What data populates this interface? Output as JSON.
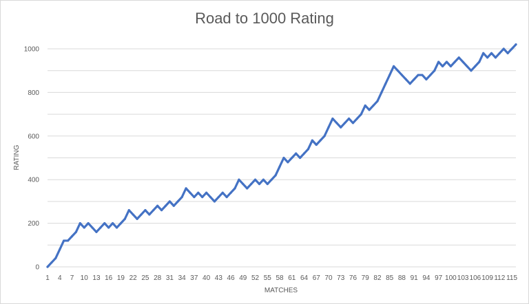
{
  "chart_data": {
    "type": "line",
    "title": "Road to 1000 Rating",
    "xlabel": "MATCHES",
    "ylabel": "RATING",
    "ylim": [
      0,
      1000
    ],
    "y_ticks": [
      0,
      200,
      400,
      600,
      800,
      1000
    ],
    "grid": "horizontal",
    "legend": "none",
    "colors": {
      "line": "#4472c4",
      "grid": "#d9d9d9",
      "text": "#595959"
    },
    "x": [
      1,
      2,
      3,
      4,
      5,
      6,
      7,
      8,
      9,
      10,
      11,
      12,
      13,
      14,
      15,
      16,
      17,
      18,
      19,
      20,
      21,
      22,
      23,
      24,
      25,
      26,
      27,
      28,
      29,
      30,
      31,
      32,
      33,
      34,
      35,
      36,
      37,
      38,
      39,
      40,
      41,
      42,
      43,
      44,
      45,
      46,
      47,
      48,
      49,
      50,
      51,
      52,
      53,
      54,
      55,
      56,
      57,
      58,
      59,
      60,
      61,
      62,
      63,
      64,
      65,
      66,
      67,
      68,
      69,
      70,
      71,
      72,
      73,
      74,
      75,
      76,
      77,
      78,
      79,
      80,
      81,
      82,
      83,
      84,
      85,
      86,
      87,
      88,
      89,
      90,
      91,
      92,
      93,
      94,
      95,
      96,
      97,
      98,
      99,
      100,
      101,
      102,
      103,
      104,
      105,
      106,
      107,
      108,
      109,
      110,
      111,
      112,
      113,
      114,
      115,
      116
    ],
    "x_tick_labels": [
      "1",
      "4",
      "7",
      "10",
      "13",
      "16",
      "19",
      "22",
      "25",
      "28",
      "31",
      "34",
      "37",
      "40",
      "43",
      "46",
      "49",
      "52",
      "55",
      "58",
      "61",
      "64",
      "67",
      "70",
      "73",
      "76",
      "79",
      "82",
      "85",
      "88",
      "91",
      "94",
      "97",
      "100",
      "103",
      "106",
      "109",
      "112",
      "115"
    ],
    "series": [
      {
        "values": [
          0,
          20,
          40,
          80,
          120,
          120,
          140,
          160,
          200,
          180,
          200,
          180,
          160,
          180,
          200,
          180,
          200,
          180,
          200,
          220,
          260,
          240,
          220,
          240,
          260,
          240,
          260,
          280,
          260,
          280,
          300,
          280,
          300,
          320,
          360,
          340,
          320,
          340,
          320,
          340,
          320,
          300,
          320,
          340,
          320,
          340,
          360,
          400,
          380,
          360,
          380,
          400,
          380,
          400,
          380,
          400,
          420,
          460,
          500,
          480,
          500,
          520,
          500,
          520,
          540,
          580,
          560,
          580,
          600,
          640,
          680,
          660,
          640,
          660,
          680,
          660,
          680,
          700,
          740,
          720,
          740,
          760,
          800,
          840,
          880,
          920,
          900,
          880,
          860,
          840,
          860,
          880,
          880,
          860,
          880,
          900,
          940,
          920,
          940,
          920,
          940,
          960,
          940,
          920,
          900,
          920,
          940,
          980,
          960,
          980,
          960,
          980,
          1000,
          980,
          1000,
          1020
        ]
      }
    ]
  }
}
